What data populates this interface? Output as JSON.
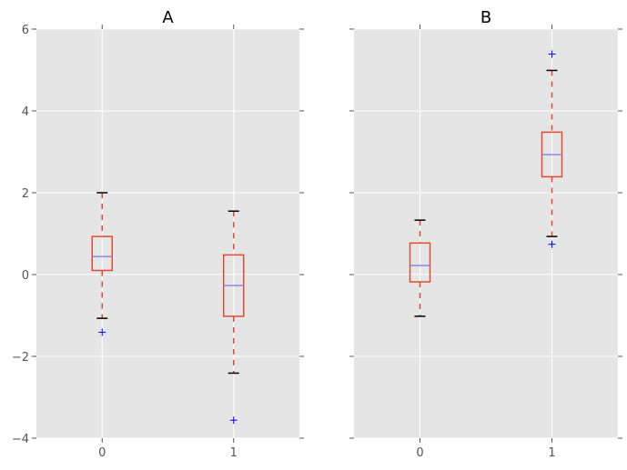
{
  "chart_data": [
    {
      "type": "box",
      "title": "A",
      "categories": [
        "0",
        "1"
      ],
      "boxes": [
        {
          "whisker_high": 2.0,
          "q3": 0.93,
          "median": 0.44,
          "q1": 0.1,
          "whisker_low": -1.07,
          "outliers": [
            -1.41
          ]
        },
        {
          "whisker_high": 1.55,
          "q3": 0.48,
          "median": -0.27,
          "q1": -1.02,
          "whisker_low": -2.41,
          "outliers": [
            -3.56
          ]
        }
      ],
      "ylim": [
        -4,
        6
      ],
      "xlim": [
        -0.5,
        1.5
      ],
      "yticks": [
        -4,
        -2,
        0,
        2,
        4,
        6
      ],
      "ytick_labels": [
        "−4",
        "−2",
        "0",
        "2",
        "4",
        "6"
      ],
      "show_ytick_labels": true,
      "grid": true
    },
    {
      "type": "box",
      "title": "B",
      "categories": [
        "0",
        "1"
      ],
      "boxes": [
        {
          "whisker_high": 1.33,
          "q3": 0.77,
          "median": 0.22,
          "q1": -0.18,
          "whisker_low": -1.02,
          "outliers": []
        },
        {
          "whisker_high": 4.99,
          "q3": 3.48,
          "median": 2.93,
          "q1": 2.39,
          "whisker_low": 0.93,
          "outliers": [
            5.39,
            0.74
          ]
        }
      ],
      "ylim": [
        -4,
        6
      ],
      "xlim": [
        -0.5,
        1.5
      ],
      "yticks": [
        -4,
        -2,
        0,
        2,
        4,
        6
      ],
      "ytick_labels": [],
      "show_ytick_labels": false,
      "grid": true
    }
  ],
  "colors": {
    "background": "#e5e5e5",
    "grid": "#ffffff",
    "box": "#e24a33",
    "median": "#8888ee",
    "cap": "#000000",
    "outlier": "#0000ff",
    "text": "#555555"
  }
}
